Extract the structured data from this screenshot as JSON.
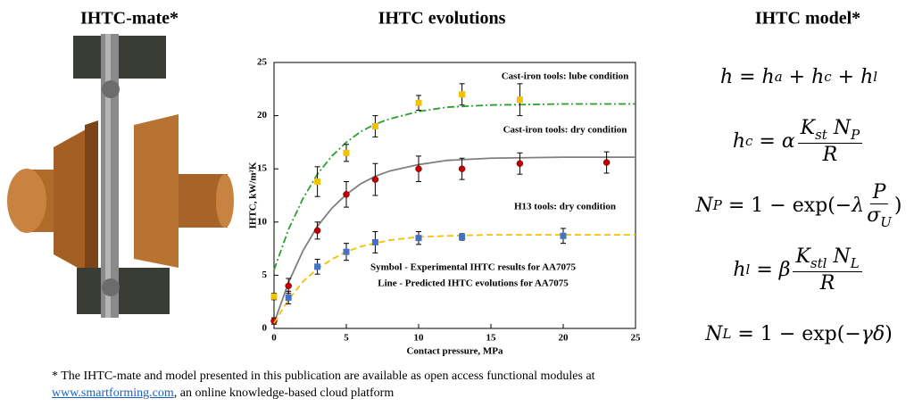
{
  "headings": {
    "left": "IHTC-mate*",
    "right": "IHTC model*"
  },
  "chart_data": {
    "type": "scatter",
    "title": "IHTC evolutions",
    "xlabel": "Contact pressure, MPa",
    "ylabel": "IHTC, kW/m²K",
    "xlim": [
      0,
      25
    ],
    "xticks": [
      0,
      5,
      10,
      15,
      20,
      25
    ],
    "ylim": [
      0,
      25
    ],
    "yticks": [
      0,
      5,
      10,
      15,
      20,
      25
    ],
    "grid": false,
    "series": [
      {
        "name": "Cast-iron tools: lube condition",
        "color": "#f2c200",
        "marker": "square",
        "x": [
          0,
          3,
          5,
          7,
          10,
          13,
          17
        ],
        "values": [
          3.0,
          13.8,
          16.5,
          19.0,
          21.2,
          22.0,
          21.5
        ],
        "errors": [
          0.3,
          1.4,
          0.8,
          1.0,
          0.7,
          1.0,
          1.5
        ],
        "fit": {
          "color": "#2ca02c",
          "dash": "dashdot",
          "x": [
            0,
            1,
            2,
            3,
            4,
            5,
            6,
            7,
            8,
            10,
            12,
            15,
            20,
            25
          ],
          "values": [
            5.5,
            9.3,
            12.2,
            14.5,
            16.2,
            17.5,
            18.5,
            19.2,
            19.7,
            20.4,
            20.8,
            21.0,
            21.1,
            21.1
          ]
        }
      },
      {
        "name": "Cast-iron tools: dry condition",
        "color": "#c00000",
        "marker": "circle",
        "x": [
          0,
          1,
          3,
          5,
          7,
          10,
          13,
          17,
          23
        ],
        "values": [
          0.7,
          4.0,
          9.2,
          12.6,
          14.0,
          15.0,
          15.0,
          15.5,
          15.6
        ],
        "errors": [
          0.3,
          0.7,
          0.8,
          1.2,
          1.5,
          1.2,
          1.0,
          1.0,
          1.0
        ],
        "fit": {
          "color": "#7f7f7f",
          "dash": "solid",
          "x": [
            0,
            1,
            2,
            3,
            4,
            5,
            6,
            7,
            8,
            10,
            12,
            15,
            20,
            25
          ],
          "values": [
            0.5,
            4.3,
            7.3,
            9.6,
            11.3,
            12.6,
            13.6,
            14.3,
            14.8,
            15.4,
            15.8,
            16.0,
            16.1,
            16.1
          ]
        }
      },
      {
        "name": "H13 tools: dry condition",
        "color": "#4472c4",
        "marker": "square",
        "x": [
          1,
          3,
          5,
          7,
          10,
          13,
          20
        ],
        "values": [
          2.9,
          5.8,
          7.2,
          8.1,
          8.5,
          8.6,
          8.7
        ],
        "errors": [
          0.6,
          0.7,
          0.8,
          1.0,
          0.6,
          0.3,
          0.7
        ],
        "fit": {
          "color": "#f2c200",
          "dash": "dashed",
          "x": [
            0,
            1,
            2,
            3,
            4,
            5,
            6,
            7,
            8,
            10,
            12,
            15,
            20,
            25
          ],
          "values": [
            0.5,
            2.7,
            4.4,
            5.6,
            6.5,
            7.2,
            7.7,
            8.0,
            8.3,
            8.6,
            8.7,
            8.8,
            8.8,
            8.8
          ]
        }
      }
    ],
    "annotations": [
      "Symbol - Experimental IHTC results for AA7075",
      "Line - Predicted IHTC evolutions for AA7075"
    ]
  },
  "equations": [
    [
      {
        "base": "h"
      },
      " = ",
      {
        "base": "h",
        "sub": "a"
      },
      " + ",
      {
        "base": "h",
        "sub": "c"
      },
      " + ",
      {
        "base": "h",
        "sub": "l"
      }
    ],
    [
      {
        "base": "h",
        "sub": "c"
      },
      " = ",
      {
        "base": "α"
      },
      {
        "frac": [
          [
            {
              "base": "K",
              "sub": "st"
            },
            " ",
            {
              "base": "N",
              "sub": "P"
            }
          ],
          [
            {
              "base": "R"
            }
          ]
        ]
      }
    ],
    [
      {
        "base": "N",
        "sub": "P"
      },
      " = 1 − exp(−",
      {
        "base": "λ"
      },
      {
        "frac": [
          [
            {
              "base": "P"
            }
          ],
          [
            {
              "base": "σ",
              "sub": "U"
            }
          ]
        ]
      },
      ")"
    ],
    [
      {
        "base": "h",
        "sub": "l"
      },
      " = ",
      {
        "base": "β"
      },
      {
        "frac": [
          [
            {
              "base": "K",
              "sub": "stl"
            },
            " ",
            {
              "base": "N",
              "sub": "L"
            }
          ],
          [
            {
              "base": "R"
            }
          ]
        ]
      }
    ],
    [
      {
        "base": "N",
        "sub": "L"
      },
      " = 1 − exp(−",
      {
        "base": "γδ"
      },
      ")"
    ]
  ],
  "footnote": {
    "before": "* The IHTC-mate and model presented in this publication are available as open access functional modules at",
    "link": "www.smartforming.com",
    "after": ", an online knowledge-based cloud platform"
  }
}
